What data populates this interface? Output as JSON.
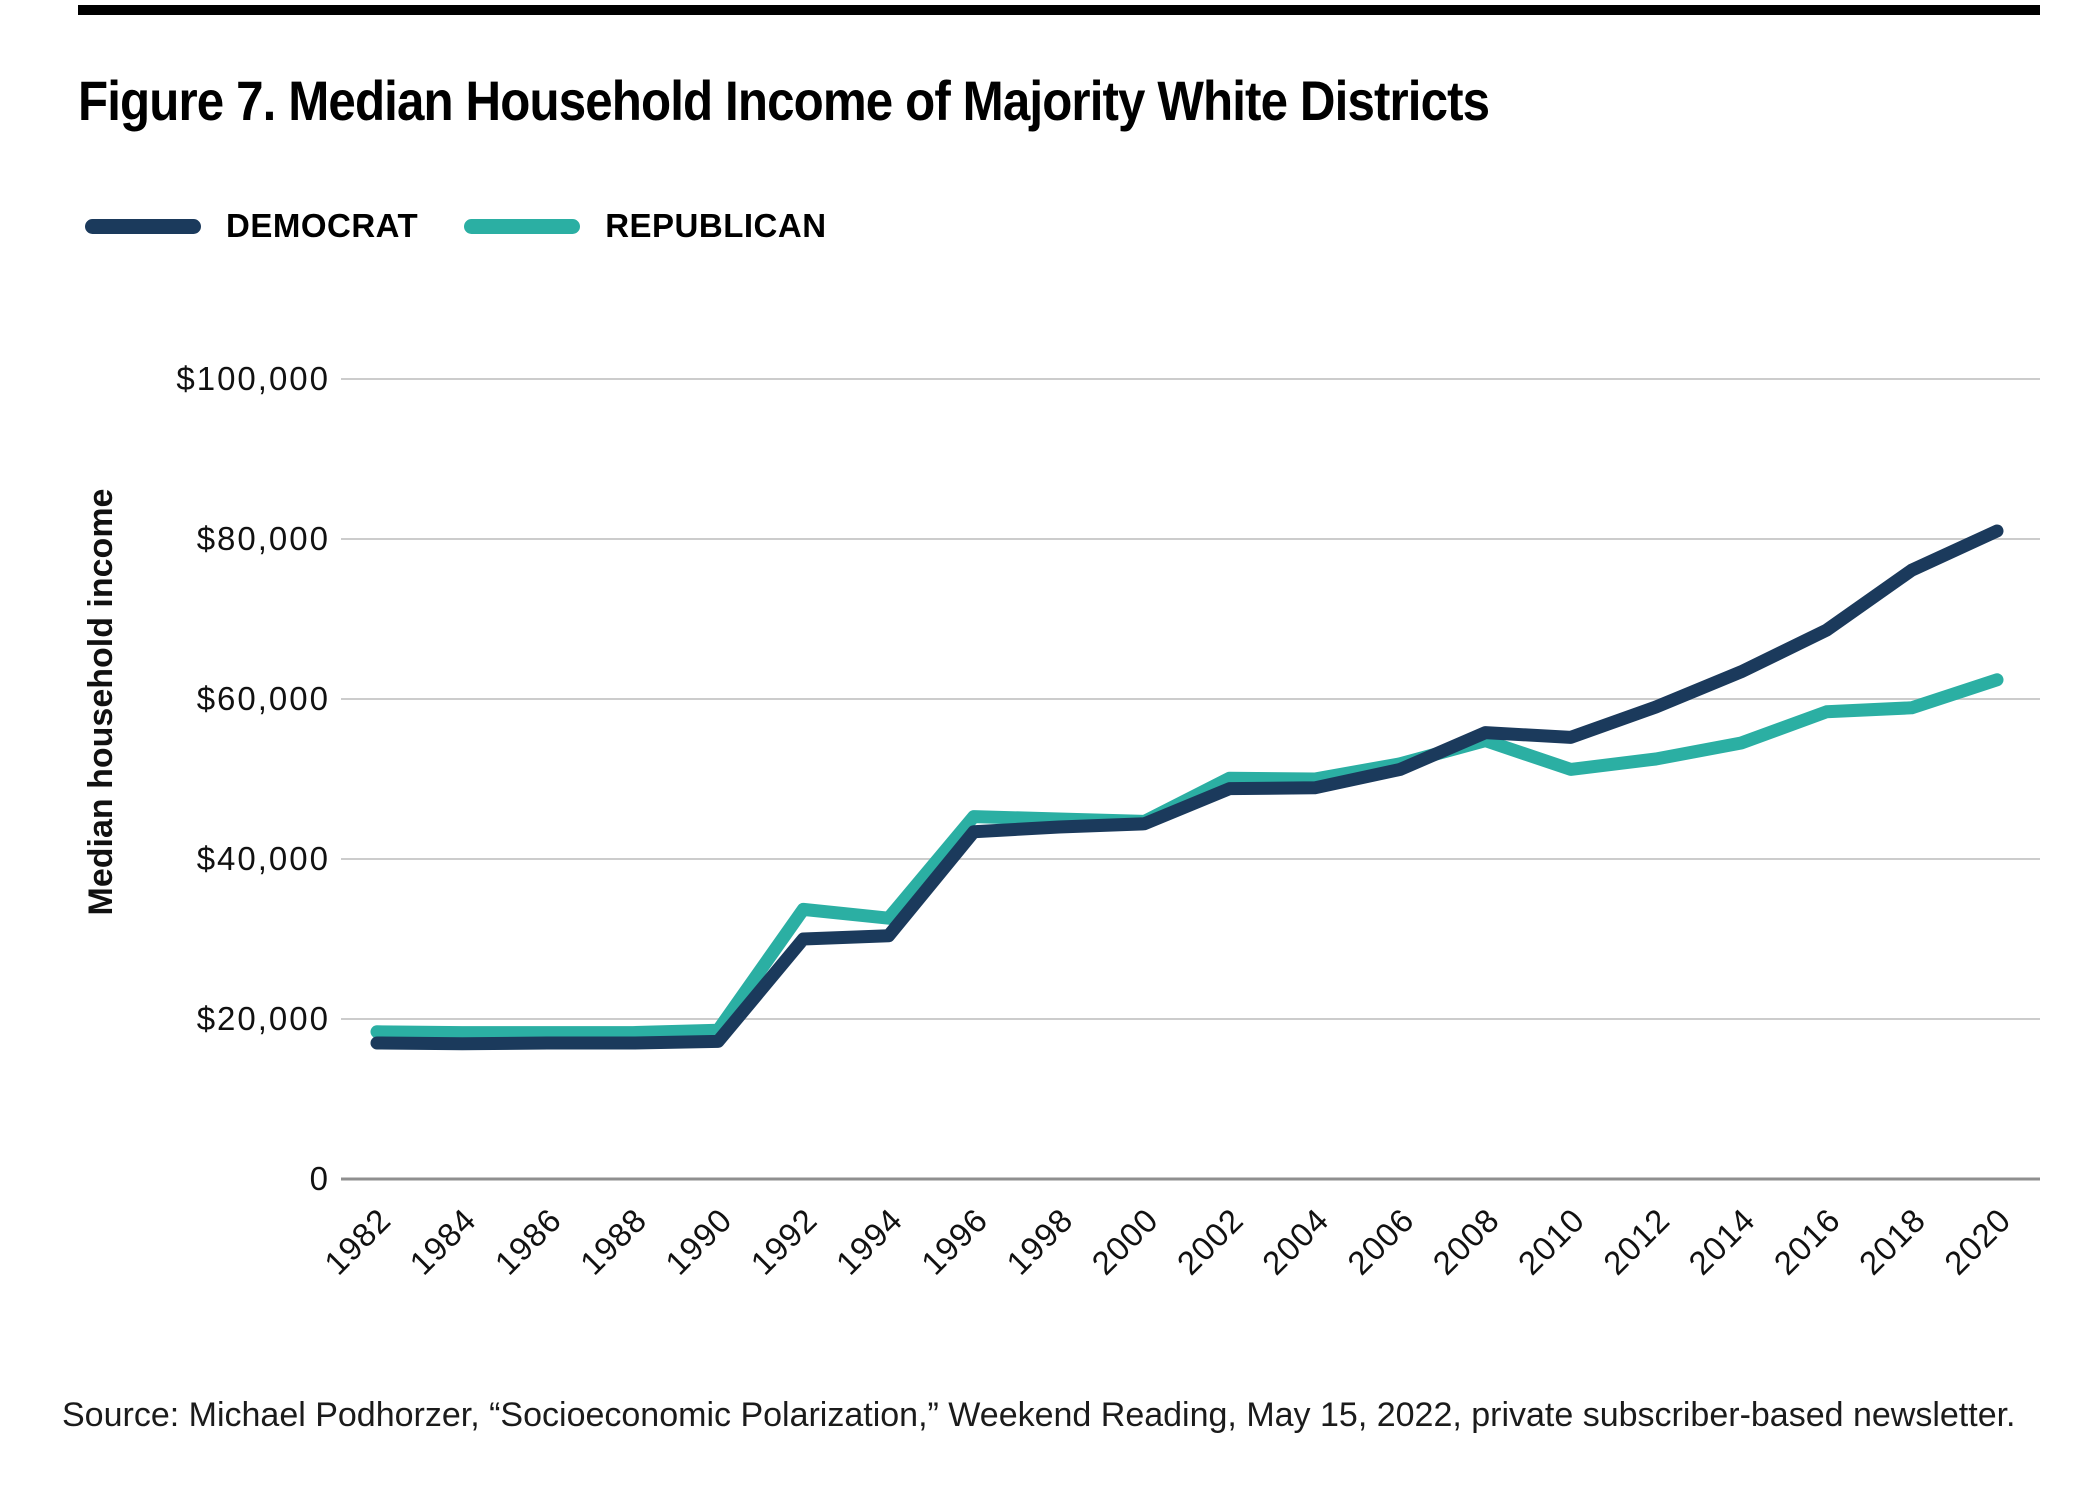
{
  "figure": {
    "title": "Figure 7. Median Household Income of Majority White Districts",
    "source": "Source: Michael Podhorzer, “Socioeconomic Polarization,” Weekend Reading, May 15, 2022, private subscriber-based newsletter.",
    "top_rule_color": "#000000",
    "background_color": "#ffffff"
  },
  "legend": [
    {
      "label": "DEMOCRAT",
      "color": "#1B3A5C"
    },
    {
      "label": "REPUBLICAN",
      "color": "#2BAFA3"
    }
  ],
  "chart_data": {
    "type": "line",
    "title": "Figure 7. Median Household Income of Majority White Districts",
    "xlabel": "",
    "ylabel": "Median household income",
    "x": [
      1982,
      1984,
      1986,
      1988,
      1990,
      1992,
      1994,
      1996,
      1998,
      2000,
      2002,
      2004,
      2006,
      2008,
      2010,
      2012,
      2014,
      2016,
      2018,
      2020
    ],
    "series": [
      {
        "name": "DEMOCRAT",
        "color": "#1B3A5C",
        "values": [
          17000,
          16900,
          17000,
          17000,
          17200,
          30000,
          30400,
          43400,
          44000,
          44400,
          48800,
          48900,
          51200,
          55800,
          55200,
          59000,
          63400,
          68600,
          76100,
          81000
        ]
      },
      {
        "name": "REPUBLICAN",
        "color": "#2BAFA3",
        "values": [
          18400,
          18300,
          18300,
          18300,
          18600,
          33700,
          32600,
          45300,
          45000,
          44700,
          50100,
          50000,
          51900,
          54800,
          51200,
          52500,
          54500,
          58400,
          58900,
          62400
        ]
      }
    ],
    "ylim": [
      0,
      100000
    ],
    "yticks": [
      {
        "value": 0,
        "label": "0"
      },
      {
        "value": 20000,
        "label": "$20,000"
      },
      {
        "value": 40000,
        "label": "$40,000"
      },
      {
        "value": 60000,
        "label": "$60,000"
      },
      {
        "value": 80000,
        "label": "$80,000"
      },
      {
        "value": 100000,
        "label": "$100,000"
      }
    ],
    "grid": true,
    "gridline_color": "#cccccc",
    "zero_axis_color": "#8f8f8f",
    "legend_position": "top-left"
  }
}
